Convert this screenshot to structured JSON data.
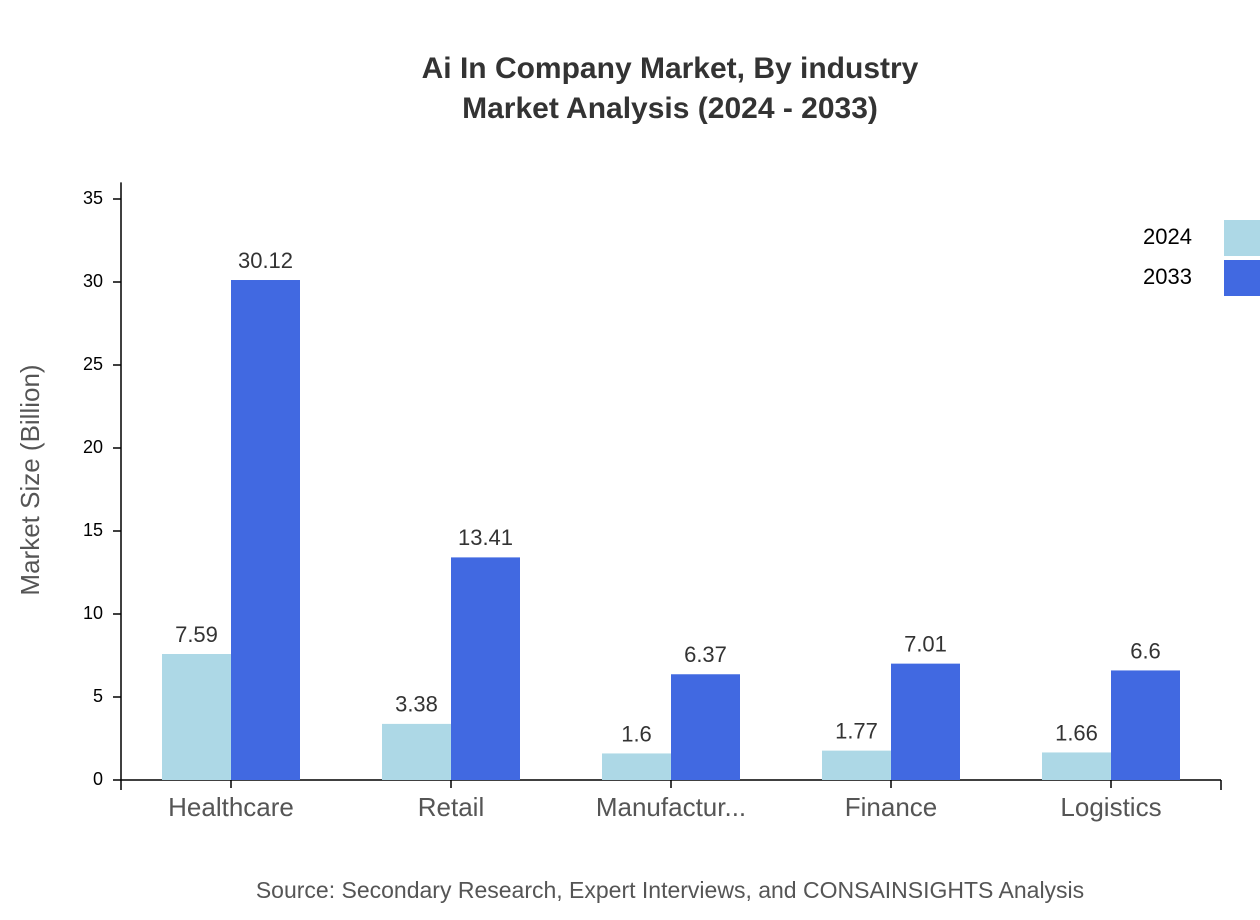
{
  "chart_data": {
    "type": "bar",
    "title": "Ai In Company Market, By industry",
    "subtitle": "Market Analysis (2024 - 2033)",
    "y_label": "Market Size (Billion)",
    "source": "Source: Secondary Research, Expert Interviews, and CONSAINSIGHTS Analysis",
    "categories": [
      "Healthcare",
      "Retail",
      "Manufactur...",
      "Finance",
      "Logistics"
    ],
    "series": [
      {
        "name": "2024",
        "color": "#add8e6",
        "values": [
          7.59,
          3.38,
          1.6,
          1.77,
          1.66
        ]
      },
      {
        "name": "2033",
        "color": "#4169e1",
        "values": [
          30.12,
          13.41,
          6.37,
          7.01,
          6.6
        ]
      }
    ],
    "ylim": [
      0,
      36
    ],
    "yticks": [
      0,
      5,
      10,
      15,
      20,
      25,
      30,
      35
    ],
    "grid": false,
    "legend": "top-right"
  }
}
